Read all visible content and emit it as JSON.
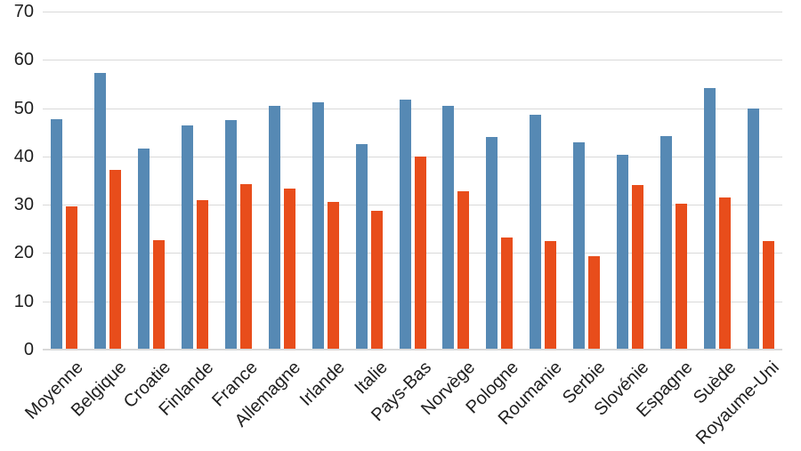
{
  "chart_data": {
    "type": "bar",
    "title": "",
    "categories": [
      "Moyenne",
      "Belgique",
      "Croatie",
      "Finlande",
      "France",
      "Allemagne",
      "Irlande",
      "Italie",
      "Pays-Bas",
      "Norvège",
      "Pologne",
      "Roumanie",
      "Serbie",
      "Slovénie",
      "Espagne",
      "Suède",
      "Royaume-Uni"
    ],
    "series": [
      {
        "color": "#5689B4",
        "values": [
          47.8,
          57.2,
          41.7,
          46.5,
          47.5,
          50.5,
          51.3,
          42.5,
          51.8,
          50.5,
          44.0,
          48.7,
          43.0,
          40.3,
          44.3,
          54.1,
          50.0
        ]
      },
      {
        "color": "#E84D1B",
        "values": [
          29.6,
          37.2,
          22.7,
          30.9,
          34.2,
          33.4,
          30.5,
          28.7,
          40.0,
          32.7,
          23.2,
          22.5,
          19.4,
          34.0,
          30.3,
          31.5,
          22.5
        ]
      }
    ],
    "xlabel": "",
    "ylabel": "",
    "ylim": [
      0,
      70
    ],
    "yticks": [
      0,
      10,
      20,
      30,
      40,
      50,
      60,
      70
    ],
    "grid": true,
    "legend_position": "none",
    "x_label_rotation_deg": 45
  },
  "style": {
    "gridline_color": "#d9d9d9",
    "text_color": "#1f1f1f",
    "background_color": "#ffffff"
  }
}
